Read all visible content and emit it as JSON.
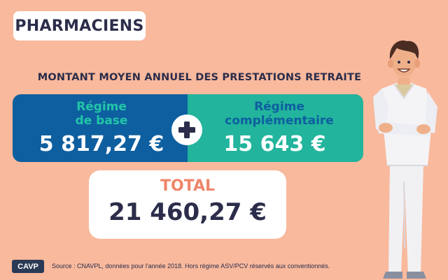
{
  "badge": {
    "title": "PHARMACIENS"
  },
  "subtitle": "MONTANT MOYEN ANNUEL DES PRESTATIONS RETRAITE",
  "base": {
    "label_line1": "Régime",
    "label_line2": "de base",
    "amount": "5 817,27 €"
  },
  "complementaire": {
    "label_line1": "Régime",
    "label_line2": "complémentaire",
    "amount": "15 643 €"
  },
  "operator_icon": "plus-icon",
  "total": {
    "label": "TOTAL",
    "amount": "21 460,27 €"
  },
  "footer": {
    "logo": "CAVP",
    "source": "Source : CNAVPL, données pour l'année 2018. Hors régime ASV/PCV réservés aux conventionnés."
  },
  "colors": {
    "background": "#f9b99d",
    "base_box": "#0e5fa0",
    "complementaire_box": "#22b49c",
    "total_label": "#ef866a",
    "dark_text": "#2b2d4a"
  },
  "illustration": "pharmacist-illustration"
}
